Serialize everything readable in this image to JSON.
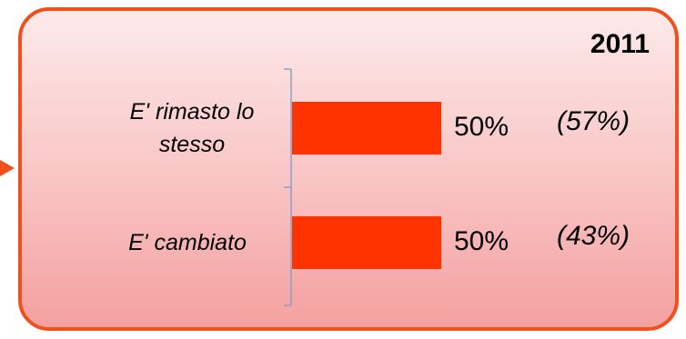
{
  "chart_data": {
    "type": "bar",
    "orientation": "horizontal",
    "title": "2011",
    "categories": [
      "E' rimasto lo stesso",
      "E' cambiato"
    ],
    "series": [
      {
        "values": [
          50,
          50
        ]
      }
    ],
    "value_labels": [
      "50%",
      "50%"
    ],
    "comparison_labels": [
      "(57%)",
      "(43%)"
    ],
    "xlim": [
      0,
      100
    ],
    "grid": false,
    "legend": "none",
    "bar_color": "#ff3300",
    "frame_color": "#f0501e"
  }
}
